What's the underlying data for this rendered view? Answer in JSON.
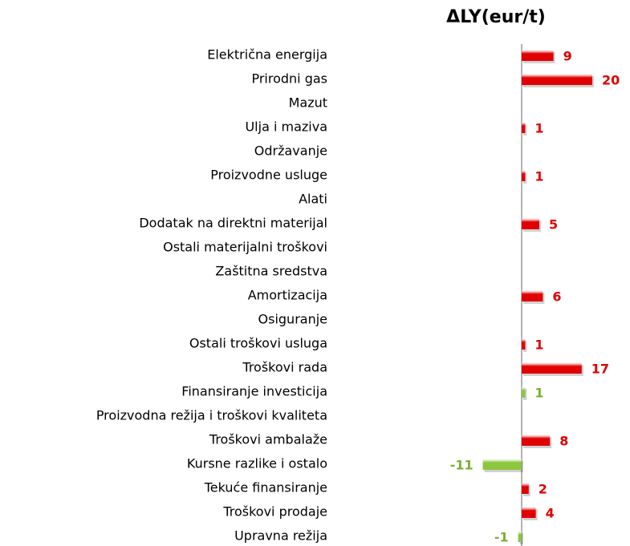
{
  "chart_data": {
    "type": "bar",
    "orientation": "horizontal",
    "title": "ΔLY(eur/t)",
    "categories": [
      "Električna energija",
      "Prirodni gas ",
      "Mazut",
      "Ulja i maziva",
      "Održavanje",
      "Proizvodne usluge",
      "Alati",
      "Dodatak na direktni materijal",
      "Ostali materijalni troškovi",
      "Zaštitna sredstva",
      "Amortizacija",
      "Osiguranje",
      "Ostali troškovi usluga",
      "Troškovi rada",
      "Finansiranje investicija",
      "Proizvodna režija i troškovi kvaliteta",
      "Troškovi ambalaže",
      "Kursne razlike i ostalo",
      "Tekuće finansiranje",
      "Troškovi prodaje",
      "Upravna režija"
    ],
    "values": [
      9,
      20,
      null,
      1,
      null,
      1,
      null,
      5,
      null,
      null,
      6,
      null,
      1,
      17,
      1,
      null,
      8,
      -11,
      2,
      4,
      -1
    ],
    "colors": [
      "#e00000",
      "#e00000",
      null,
      "#e00000",
      null,
      "#e00000",
      null,
      "#e00000",
      null,
      null,
      "#e00000",
      null,
      "#e00000",
      "#e00000",
      "#8cc63f",
      null,
      "#e00000",
      "#8cc63f",
      "#e00000",
      "#e00000",
      "#8cc63f"
    ]
  }
}
